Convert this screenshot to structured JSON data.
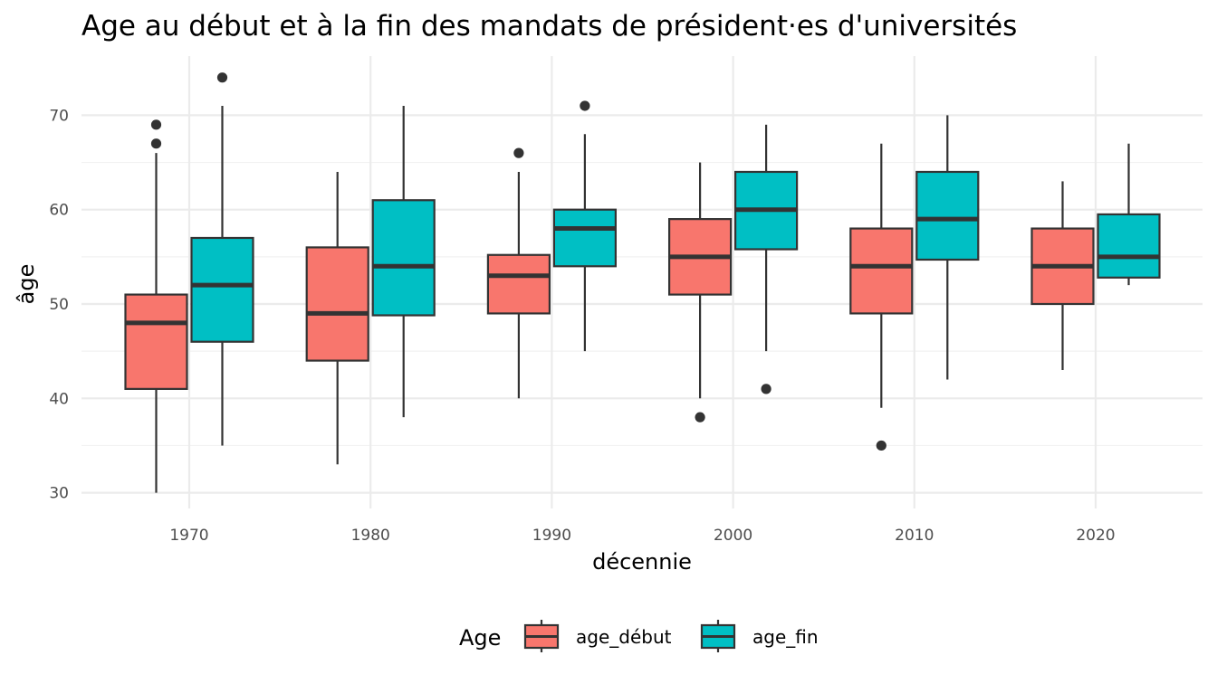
{
  "chart_data": {
    "type": "boxplot",
    "title": "Age au début et à la fin des mandats de président·es d'universités",
    "xlabel": "décennie",
    "ylabel": "âge",
    "categories": [
      "1970",
      "1980",
      "1990",
      "2000",
      "2010",
      "2020"
    ],
    "ylim": [
      28,
      76
    ],
    "yticks": [
      30,
      40,
      50,
      60,
      70
    ],
    "grid": true,
    "legend": {
      "title": "Age",
      "position": "bottom",
      "entries": [
        {
          "label": "age_début",
          "color": "#F8766D"
        },
        {
          "label": "age_fin",
          "color": "#00BFC4"
        }
      ]
    },
    "series": [
      {
        "name": "age_début",
        "color": "#F8766D",
        "boxes": [
          {
            "category": "1970",
            "lower_whisker": 30,
            "q1": 41,
            "median": 48,
            "q3": 51,
            "upper_whisker": 66,
            "outliers": [
              67,
              69
            ]
          },
          {
            "category": "1980",
            "lower_whisker": 33,
            "q1": 44,
            "median": 49,
            "q3": 56,
            "upper_whisker": 64,
            "outliers": []
          },
          {
            "category": "1990",
            "lower_whisker": 40,
            "q1": 49,
            "median": 53,
            "q3": 55.2,
            "upper_whisker": 64,
            "outliers": [
              66
            ]
          },
          {
            "category": "2000",
            "lower_whisker": 40,
            "q1": 51,
            "median": 55,
            "q3": 59,
            "upper_whisker": 65,
            "outliers": [
              38
            ]
          },
          {
            "category": "2010",
            "lower_whisker": 39,
            "q1": 49,
            "median": 54,
            "q3": 58,
            "upper_whisker": 67,
            "outliers": [
              35
            ]
          },
          {
            "category": "2020",
            "lower_whisker": 43,
            "q1": 50,
            "median": 54,
            "q3": 58,
            "upper_whisker": 63,
            "outliers": []
          }
        ]
      },
      {
        "name": "age_fin",
        "color": "#00BFC4",
        "boxes": [
          {
            "category": "1970",
            "lower_whisker": 35,
            "q1": 46,
            "median": 52,
            "q3": 57,
            "upper_whisker": 71,
            "outliers": [
              74
            ]
          },
          {
            "category": "1980",
            "lower_whisker": 38,
            "q1": 48.8,
            "median": 54,
            "q3": 61,
            "upper_whisker": 71,
            "outliers": []
          },
          {
            "category": "1990",
            "lower_whisker": 45,
            "q1": 54,
            "median": 58,
            "q3": 60,
            "upper_whisker": 68,
            "outliers": [
              71
            ]
          },
          {
            "category": "2000",
            "lower_whisker": 45,
            "q1": 55.8,
            "median": 60,
            "q3": 64,
            "upper_whisker": 69,
            "outliers": [
              41
            ]
          },
          {
            "category": "2010",
            "lower_whisker": 42,
            "q1": 54.7,
            "median": 59,
            "q3": 64,
            "upper_whisker": 70,
            "outliers": []
          },
          {
            "category": "2020",
            "lower_whisker": 52,
            "q1": 52.8,
            "median": 55,
            "q3": 59.5,
            "upper_whisker": 67,
            "outliers": []
          }
        ]
      }
    ]
  }
}
